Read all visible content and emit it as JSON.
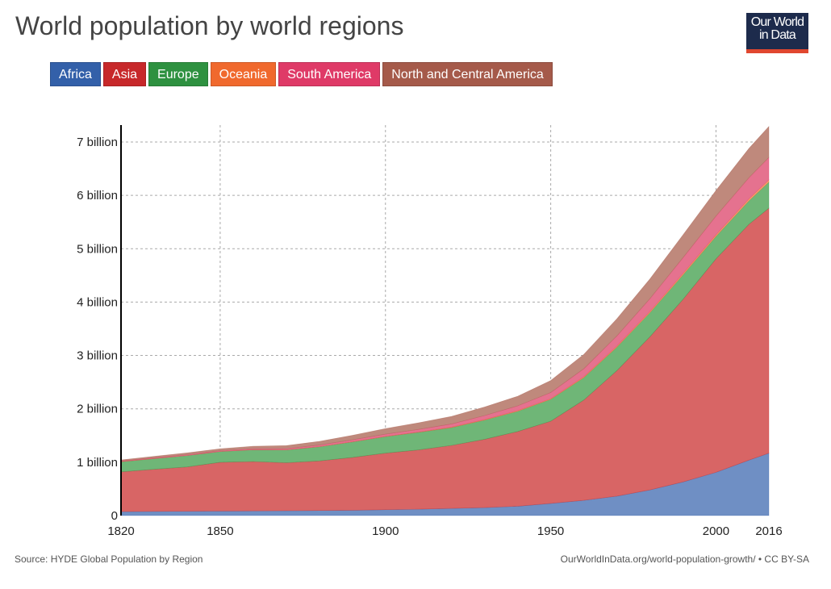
{
  "title": "World population by world regions",
  "logo": {
    "line1": "Our World",
    "line2": "in Data"
  },
  "footer": {
    "source": "Source: HYDE Global Population by Region",
    "credit": "OurWorldInData.org/world-population-growth/ • CC BY-SA"
  },
  "chart_data": {
    "type": "area",
    "stacked": true,
    "title": "World population by world regions",
    "xlabel": "",
    "ylabel": "",
    "xlim": [
      1820,
      2016
    ],
    "ylim": [
      0,
      7300000000
    ],
    "grid": true,
    "legend_position": "top-left",
    "x_ticks": [
      "1820",
      "1850",
      "1900",
      "1950",
      "2000",
      "2016"
    ],
    "x_tick_values": [
      1820,
      1850,
      1900,
      1950,
      2000,
      2016
    ],
    "y_ticks": [
      "0",
      "1 billion",
      "2 billion",
      "3 billion",
      "4 billion",
      "5 billion",
      "6 billion",
      "7 billion"
    ],
    "y_tick_values": [
      0,
      1000000000,
      2000000000,
      3000000000,
      4000000000,
      5000000000,
      6000000000,
      7000000000
    ],
    "x": [
      1820,
      1830,
      1840,
      1850,
      1860,
      1870,
      1880,
      1890,
      1900,
      1910,
      1920,
      1930,
      1940,
      1950,
      1960,
      1970,
      1980,
      1990,
      2000,
      2010,
      2016
    ],
    "series": [
      {
        "name": "Africa",
        "color": "#3360a9",
        "fill": "#6f8fc4",
        "values": [
          74000000,
          78000000,
          82000000,
          85000000,
          88000000,
          90000000,
          95000000,
          100000000,
          110000000,
          120000000,
          135000000,
          150000000,
          175000000,
          228000000,
          285000000,
          365000000,
          480000000,
          630000000,
          810000000,
          1040000000,
          1170000000
        ]
      },
      {
        "name": "Asia",
        "color": "#c7282a",
        "fill": "#d86565",
        "values": [
          745000000,
          790000000,
          830000000,
          915000000,
          925000000,
          900000000,
          930000000,
          990000000,
          1060000000,
          1110000000,
          1180000000,
          1280000000,
          1400000000,
          1540000000,
          1880000000,
          2350000000,
          2870000000,
          3420000000,
          4000000000,
          4420000000,
          4590000000
        ]
      },
      {
        "name": "Europe",
        "color": "#2e9140",
        "fill": "#6fb677",
        "values": [
          190000000,
          200000000,
          212000000,
          200000000,
          220000000,
          240000000,
          265000000,
          290000000,
          310000000,
          330000000,
          335000000,
          360000000,
          380000000,
          410000000,
          420000000,
          440000000,
          450000000,
          460000000,
          420000000,
          440000000,
          490000000
        ]
      },
      {
        "name": "Oceania",
        "color": "#f0692d",
        "fill": "#f3a070",
        "values": [
          2000000,
          2000000,
          2000000,
          2000000,
          2000000,
          3000000,
          3000000,
          4000000,
          5000000,
          6000000,
          8000000,
          10000000,
          11000000,
          13000000,
          16000000,
          20000000,
          23000000,
          27000000,
          31000000,
          37000000,
          40000000
        ]
      },
      {
        "name": "South America",
        "color": "#df3a67",
        "fill": "#e5728f",
        "values": [
          12000000,
          14000000,
          16000000,
          15000000,
          18000000,
          22000000,
          28000000,
          35000000,
          40000000,
          48000000,
          60000000,
          75000000,
          90000000,
          115000000,
          150000000,
          190000000,
          240000000,
          295000000,
          350000000,
          395000000,
          420000000
        ]
      },
      {
        "name": "North and Central America",
        "color": "#a55a4a",
        "fill": "#bf897c",
        "values": [
          20000000,
          26000000,
          32000000,
          35000000,
          45000000,
          55000000,
          70000000,
          85000000,
          105000000,
          125000000,
          140000000,
          160000000,
          180000000,
          225000000,
          270000000,
          320000000,
          370000000,
          425000000,
          480000000,
          550000000,
          580000000
        ]
      }
    ]
  }
}
